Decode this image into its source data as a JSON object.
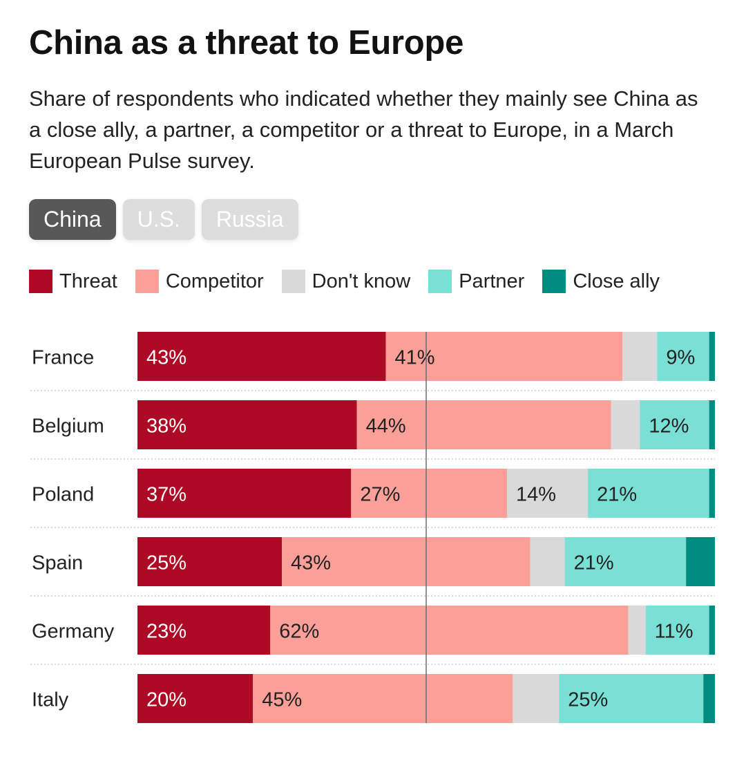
{
  "header": {
    "title": "China as a threat to Europe",
    "subtitle": "Share of respondents who indicated whether they mainly see China as a close ally, a partner, a competitor or a threat to Europe, in a March European Pulse survey."
  },
  "tabs": [
    {
      "label": "China",
      "active": true
    },
    {
      "label": "U.S.",
      "active": false
    },
    {
      "label": "Russia",
      "active": false
    }
  ],
  "legend": [
    {
      "label": "Threat",
      "color": "#ad0a25"
    },
    {
      "label": "Competitor",
      "color": "#fba098"
    },
    {
      "label": "Don't know",
      "color": "#d9d9d9"
    },
    {
      "label": "Partner",
      "color": "#7ae0d6"
    },
    {
      "label": "Close ally",
      "color": "#008c80"
    }
  ],
  "chart_data": {
    "type": "bar",
    "orientation": "horizontal",
    "stacked": true,
    "xlim": [
      0,
      100
    ],
    "reference_line": 50,
    "categories": [
      "France",
      "Belgium",
      "Poland",
      "Spain",
      "Germany",
      "Italy"
    ],
    "series": [
      {
        "name": "Threat",
        "color": "#ad0a25",
        "label_color": "#ffffff",
        "values": [
          43,
          38,
          37,
          25,
          23,
          20
        ],
        "labels": [
          "43%",
          "38%",
          "37%",
          "25%",
          "23%",
          "20%"
        ]
      },
      {
        "name": "Competitor",
        "color": "#fba098",
        "label_color": "#222222",
        "values": [
          41,
          44,
          27,
          43,
          62,
          45
        ],
        "labels": [
          "41%",
          "44%",
          "27%",
          "43%",
          "62%",
          "45%"
        ]
      },
      {
        "name": "Don't know",
        "color": "#d9d9d9",
        "label_color": "#222222",
        "values": [
          6,
          5,
          14,
          6,
          3,
          8
        ],
        "labels": [
          "",
          "",
          "14%",
          "",
          "",
          ""
        ]
      },
      {
        "name": "Partner",
        "color": "#7ae0d6",
        "label_color": "#222222",
        "values": [
          9,
          12,
          21,
          21,
          11,
          25
        ],
        "labels": [
          "9%",
          "12%",
          "21%",
          "21%",
          "11%",
          "25%"
        ]
      },
      {
        "name": "Close ally",
        "color": "#008c80",
        "label_color": "#ffffff",
        "values": [
          1,
          1,
          1,
          5,
          1,
          2
        ],
        "labels": [
          "",
          "",
          "",
          "",
          "",
          ""
        ]
      }
    ]
  }
}
